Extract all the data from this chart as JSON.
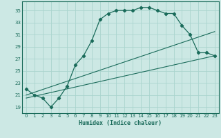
{
  "xlabel": "Humidex (Indice chaleur)",
  "bg_color": "#cce8e4",
  "line_color": "#1a6b5a",
  "grid_color": "#aad4ce",
  "xlim": [
    -0.5,
    23.5
  ],
  "ylim": [
    18.0,
    36.5
  ],
  "yticks": [
    19,
    21,
    23,
    25,
    27,
    29,
    31,
    33,
    35
  ],
  "xticks": [
    0,
    1,
    2,
    3,
    4,
    5,
    6,
    7,
    8,
    9,
    10,
    11,
    12,
    13,
    14,
    15,
    16,
    17,
    18,
    19,
    20,
    21,
    22,
    23
  ],
  "main_curve_x": [
    0,
    1,
    2,
    3,
    4,
    5,
    6,
    7,
    8,
    9,
    10,
    11,
    12,
    13,
    14,
    15,
    16,
    17,
    18,
    19,
    20,
    21,
    22,
    23
  ],
  "main_curve_y": [
    22.0,
    21.0,
    20.5,
    19.0,
    20.5,
    22.5,
    26.0,
    27.5,
    30.0,
    33.5,
    34.5,
    35.0,
    35.0,
    35.0,
    35.5,
    35.5,
    35.0,
    34.5,
    34.5,
    32.5,
    31.0,
    28.0,
    28.0,
    27.5
  ],
  "line2_x": [
    0,
    23
  ],
  "line2_y": [
    21.0,
    31.5
  ],
  "line3_x": [
    0,
    23
  ],
  "line3_y": [
    20.5,
    27.5
  ]
}
